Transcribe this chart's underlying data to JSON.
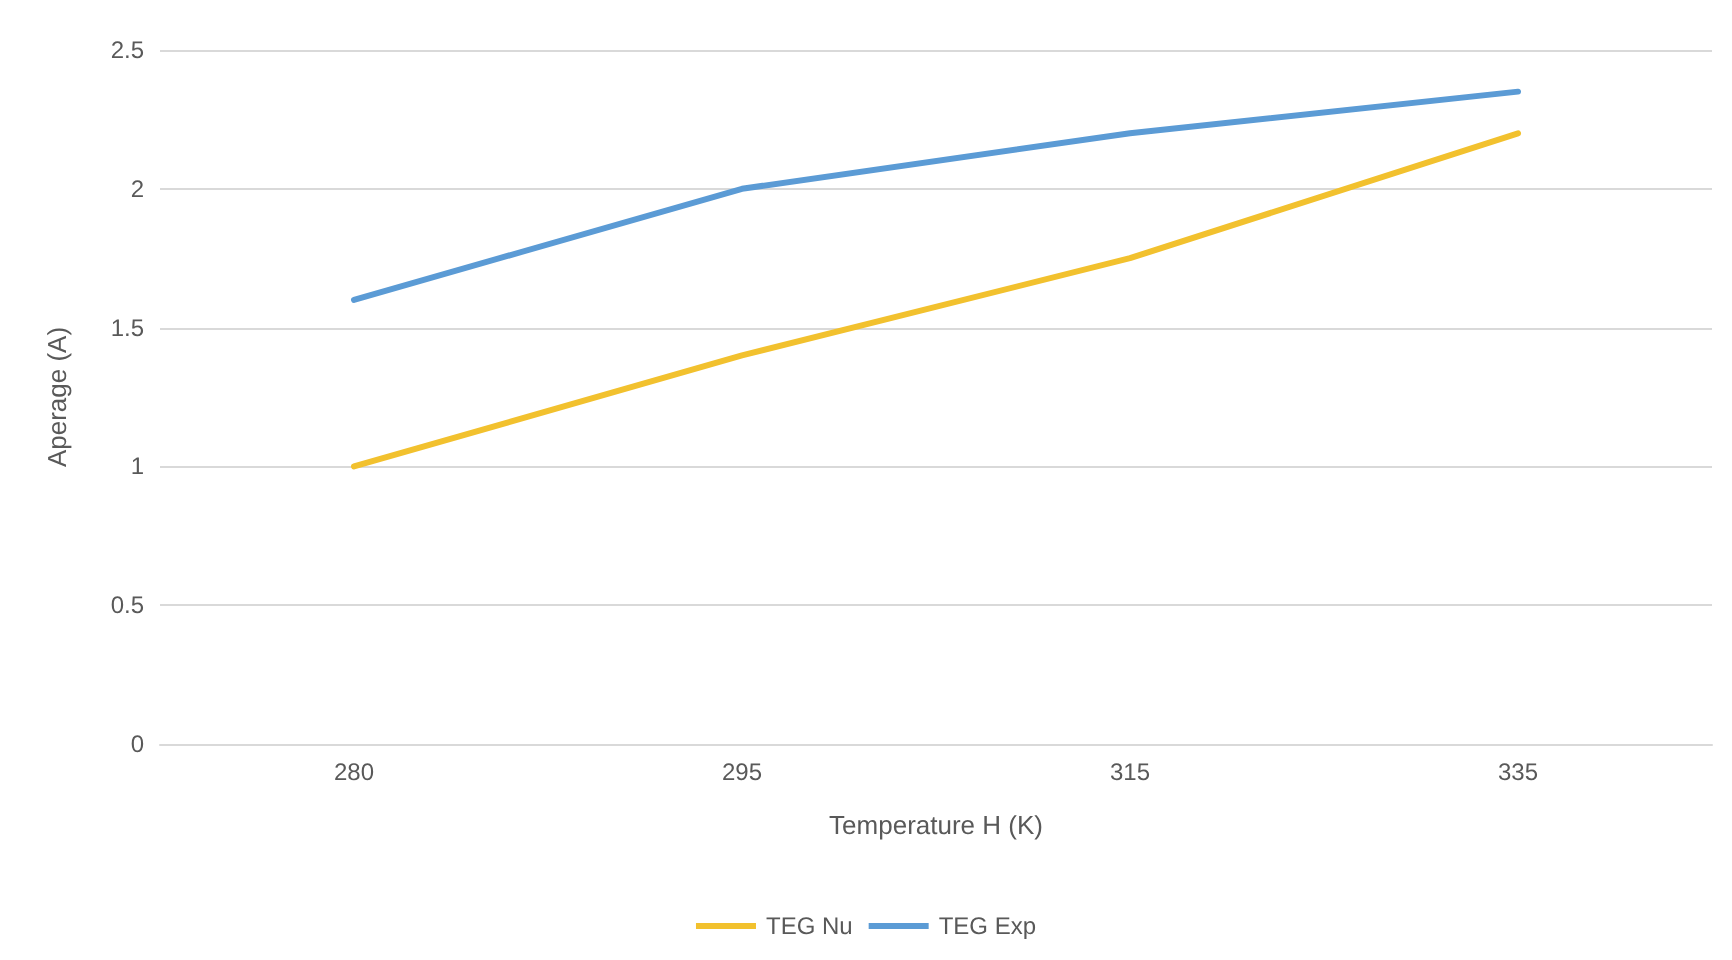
{
  "chart_data": {
    "type": "line",
    "xlabel": "Temperature H (K)",
    "ylabel": "Aperage (A)",
    "categories": [
      "280",
      "295",
      "315",
      "335"
    ],
    "series": [
      {
        "name": "TEG Nu",
        "color": "#f2c12e",
        "values": [
          1.0,
          1.4,
          1.75,
          2.2
        ]
      },
      {
        "name": "TEG Exp",
        "color": "#5b9bd5",
        "values": [
          1.6,
          2.0,
          2.2,
          2.35
        ]
      }
    ],
    "ylim": [
      0,
      2.5
    ],
    "yticks": [
      0,
      0.5,
      1,
      1.5,
      2,
      2.5
    ],
    "grid": "y",
    "legend": "bottom",
    "marker": "none",
    "line_style": "solid"
  }
}
